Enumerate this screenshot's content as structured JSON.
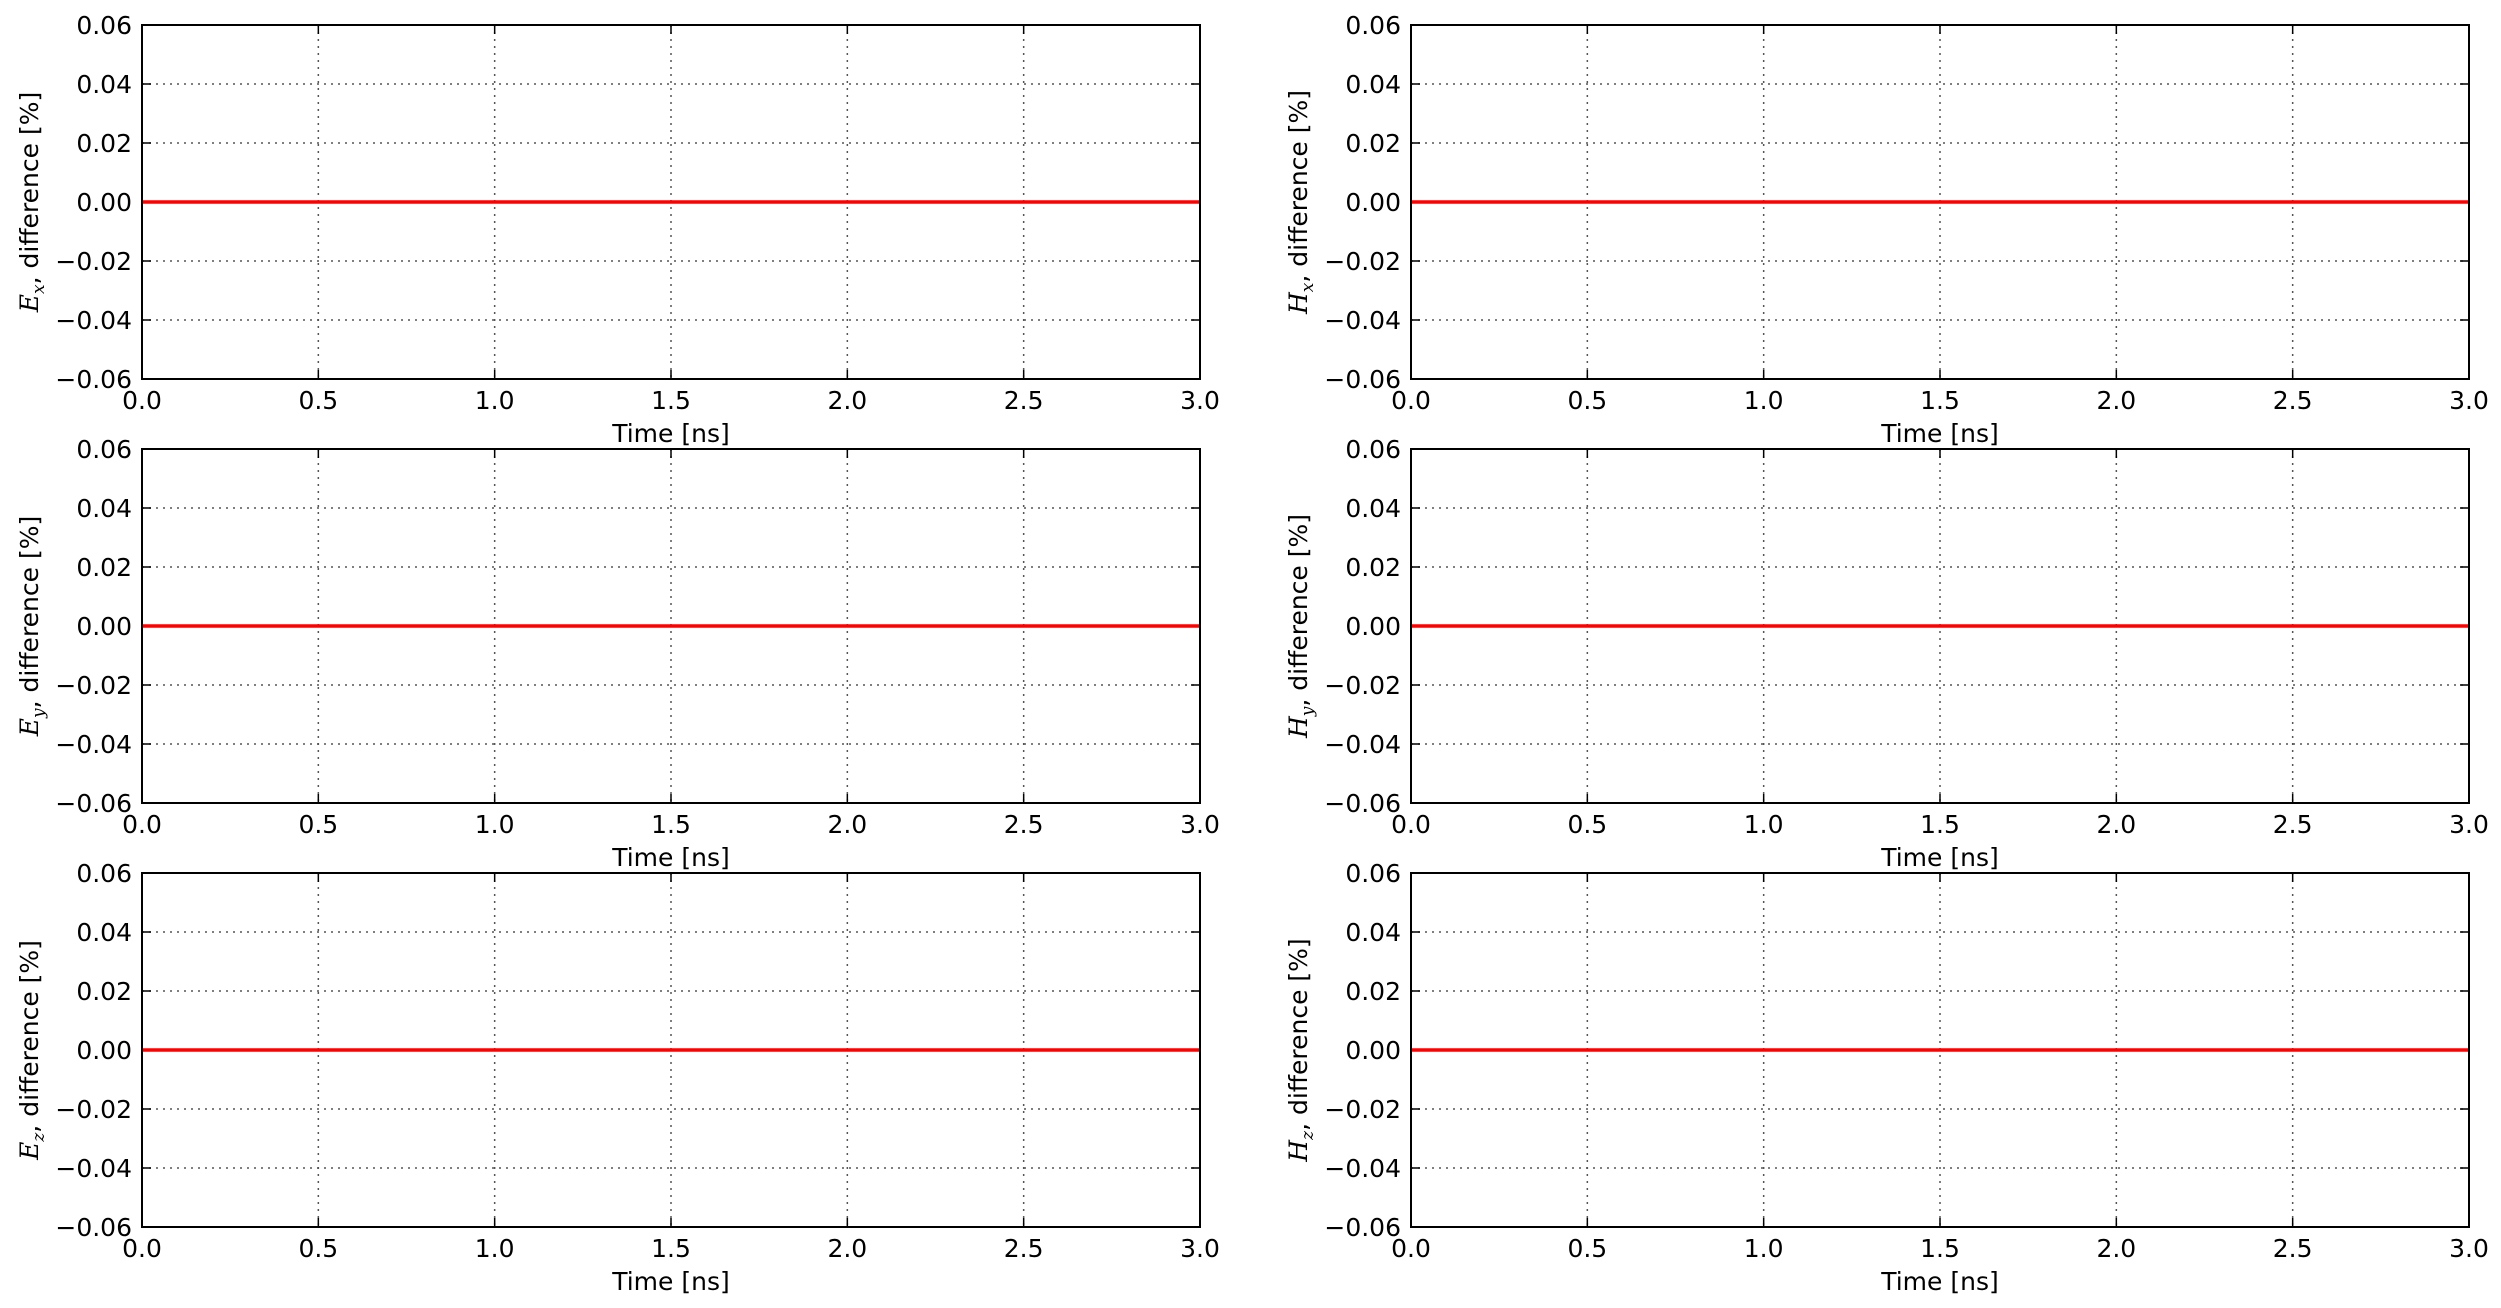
{
  "colors": {
    "series": "#ff0000",
    "grid": "#555555",
    "frame": "#000000",
    "background": "#ffffff"
  },
  "chart_data": [
    {
      "type": "line",
      "panel": "Ex",
      "ylabel_symbol": "E",
      "ylabel_subscript": "x",
      "ylabel_text": ", difference [%]",
      "xlabel": "Time [ns]",
      "xlim": [
        0.0,
        3.0
      ],
      "ylim": [
        -0.06,
        0.06
      ],
      "xticks": [
        "0.0",
        "0.5",
        "1.0",
        "1.5",
        "2.0",
        "2.5",
        "3.0"
      ],
      "yticks": [
        "0.06",
        "0.04",
        "0.02",
        "0.00",
        "−0.02",
        "−0.04",
        "−0.06"
      ],
      "grid": true,
      "series": [
        {
          "x": [
            0.0,
            3.0
          ],
          "y": [
            0.0,
            0.0
          ]
        }
      ]
    },
    {
      "type": "line",
      "panel": "Hx",
      "ylabel_symbol": "H",
      "ylabel_subscript": "x",
      "ylabel_text": ", difference [%]",
      "xlabel": "Time [ns]",
      "xlim": [
        0.0,
        3.0
      ],
      "ylim": [
        -0.06,
        0.06
      ],
      "xticks": [
        "0.0",
        "0.5",
        "1.0",
        "1.5",
        "2.0",
        "2.5",
        "3.0"
      ],
      "yticks": [
        "0.06",
        "0.04",
        "0.02",
        "0.00",
        "−0.02",
        "−0.04",
        "−0.06"
      ],
      "grid": true,
      "series": [
        {
          "x": [
            0.0,
            3.0
          ],
          "y": [
            0.0,
            0.0
          ]
        }
      ]
    },
    {
      "type": "line",
      "panel": "Ey",
      "ylabel_symbol": "E",
      "ylabel_subscript": "y",
      "ylabel_text": ", difference [%]",
      "xlabel": "Time [ns]",
      "xlim": [
        0.0,
        3.0
      ],
      "ylim": [
        -0.06,
        0.06
      ],
      "xticks": [
        "0.0",
        "0.5",
        "1.0",
        "1.5",
        "2.0",
        "2.5",
        "3.0"
      ],
      "yticks": [
        "0.06",
        "0.04",
        "0.02",
        "0.00",
        "−0.02",
        "−0.04",
        "−0.06"
      ],
      "grid": true,
      "series": [
        {
          "x": [
            0.0,
            3.0
          ],
          "y": [
            0.0,
            0.0
          ]
        }
      ]
    },
    {
      "type": "line",
      "panel": "Hy",
      "ylabel_symbol": "H",
      "ylabel_subscript": "y",
      "ylabel_text": ", difference [%]",
      "xlabel": "Time [ns]",
      "xlim": [
        0.0,
        3.0
      ],
      "ylim": [
        -0.06,
        0.06
      ],
      "xticks": [
        "0.0",
        "0.5",
        "1.0",
        "1.5",
        "2.0",
        "2.5",
        "3.0"
      ],
      "yticks": [
        "0.06",
        "0.04",
        "0.02",
        "0.00",
        "−0.02",
        "−0.04",
        "−0.06"
      ],
      "grid": true,
      "series": [
        {
          "x": [
            0.0,
            3.0
          ],
          "y": [
            0.0,
            0.0
          ]
        }
      ]
    },
    {
      "type": "line",
      "panel": "Ez",
      "ylabel_symbol": "E",
      "ylabel_subscript": "z",
      "ylabel_text": ", difference [%]",
      "xlabel": "Time [ns]",
      "xlim": [
        0.0,
        3.0
      ],
      "ylim": [
        -0.06,
        0.06
      ],
      "xticks": [
        "0.0",
        "0.5",
        "1.0",
        "1.5",
        "2.0",
        "2.5",
        "3.0"
      ],
      "yticks": [
        "0.06",
        "0.04",
        "0.02",
        "0.00",
        "−0.02",
        "−0.04",
        "−0.06"
      ],
      "grid": true,
      "series": [
        {
          "x": [
            0.0,
            3.0
          ],
          "y": [
            0.0,
            0.0
          ]
        }
      ]
    },
    {
      "type": "line",
      "panel": "Hz",
      "ylabel_symbol": "H",
      "ylabel_subscript": "z",
      "ylabel_text": ", difference [%]",
      "xlabel": "Time [ns]",
      "xlim": [
        0.0,
        3.0
      ],
      "ylim": [
        -0.06,
        0.06
      ],
      "xticks": [
        "0.0",
        "0.5",
        "1.0",
        "1.5",
        "2.0",
        "2.5",
        "3.0"
      ],
      "yticks": [
        "0.06",
        "0.04",
        "0.02",
        "0.00",
        "−0.02",
        "−0.04",
        "−0.06"
      ],
      "grid": true,
      "series": [
        {
          "x": [
            0.0,
            3.0
          ],
          "y": [
            0.0,
            0.0
          ]
        }
      ]
    }
  ]
}
